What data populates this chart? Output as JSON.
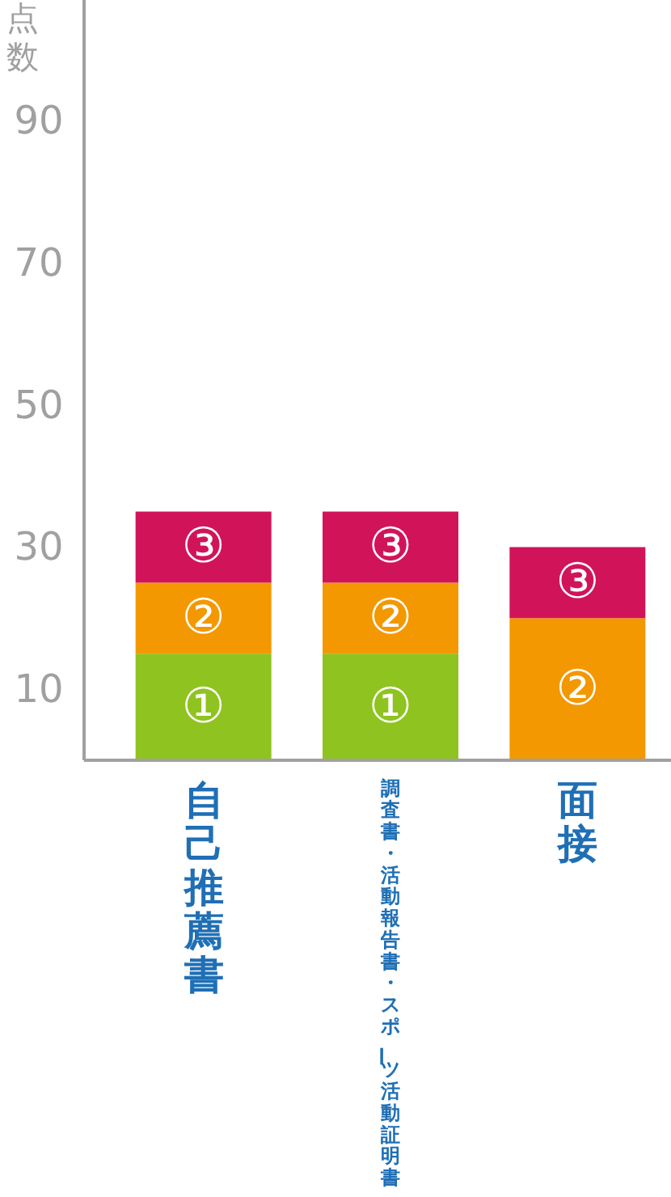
{
  "chart_data": {
    "type": "bar",
    "stacked": true,
    "ylabel": "点数",
    "categories": [
      "自己推薦書",
      "調査書・活動報告書・スポーツ活動証明書",
      "面接"
    ],
    "series": [
      {
        "name": "①",
        "color": "#8fc31f",
        "values": [
          15,
          15,
          null
        ]
      },
      {
        "name": "②",
        "color": "#f39800",
        "values": [
          10,
          10,
          20
        ]
      },
      {
        "name": "③",
        "color": "#d1145a",
        "values": [
          10,
          10,
          10
        ]
      }
    ],
    "ylim": [
      0,
      107
    ],
    "yticks": [
      10,
      30,
      50,
      70,
      90
    ],
    "grid": false
  }
}
